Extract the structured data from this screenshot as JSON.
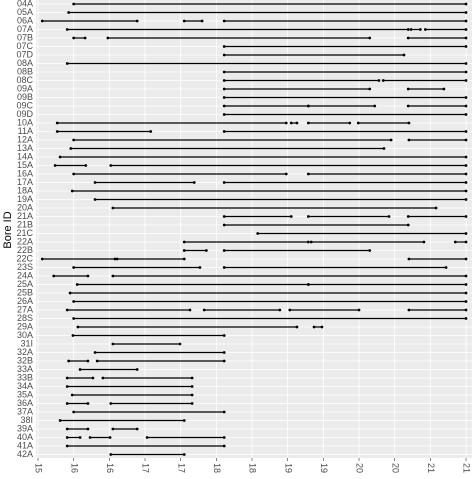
{
  "chart_data": {
    "type": "range",
    "y_label": "Bore ID",
    "color": "#000000",
    "grid": true,
    "xlim": [
      15,
      21
    ],
    "xticks": [
      15,
      {
        "value": 15.5,
        "label": "16"
      },
      16,
      {
        "value": 16.5,
        "label": "17"
      },
      17,
      {
        "value": 17.5,
        "label": "18"
      },
      18,
      {
        "value": 18.5,
        "label": "19"
      },
      19,
      {
        "value": 19.5,
        "label": "20"
      },
      20,
      {
        "value": 20.5,
        "label": "21"
      },
      21
    ],
    "categories": [
      "04A",
      "05A",
      "06A",
      "07A",
      "07B",
      "07C",
      "07D",
      "08A",
      "08B",
      "08C",
      "09A",
      "09B",
      "09C",
      "09D",
      "10A",
      "11A",
      "12A",
      "13A",
      "14A",
      "15A",
      "16A",
      "17A",
      "18A",
      "19A",
      "20A",
      "21A",
      "21B",
      "21C",
      "22A",
      "22B",
      "22C",
      "23S",
      "24A",
      "25A",
      "25B",
      "26A",
      "27A",
      "28S",
      "29A",
      "30A",
      "31I",
      "32A",
      "32B",
      "33A",
      "33B",
      "34A",
      "35A",
      "36A",
      "37A",
      "38I",
      "39A",
      "40A",
      "41A",
      "42A"
    ],
    "ranges": [
      [
        [
          15.5,
          21
        ]
      ],
      [
        [
          15.43,
          21
        ]
      ],
      [
        [
          15.06,
          16.39
        ],
        [
          17.05,
          17.3
        ],
        [
          17.61,
          21
        ]
      ],
      [
        [
          15.41,
          20.19
        ],
        [
          20.23,
          20.36
        ],
        [
          20.43,
          21
        ]
      ],
      [
        [
          15.5,
          15.66
        ],
        [
          15.98,
          19.65
        ],
        [
          20.19,
          21
        ]
      ],
      [
        [
          17.61,
          21
        ]
      ],
      [
        [
          17.61,
          20.13
        ]
      ],
      [
        [
          15.41,
          21
        ]
      ],
      [
        [
          17.61,
          21
        ]
      ],
      [
        [
          17.61,
          19.78
        ],
        [
          19.84,
          21
        ]
      ],
      [
        [
          17.61,
          19.65
        ],
        [
          20.19,
          20.69
        ]
      ],
      [
        [
          17.61,
          21
        ]
      ],
      [
        [
          17.61,
          18.79
        ],
        [
          18.79,
          19.72
        ],
        [
          20.19,
          21
        ]
      ],
      [
        [
          17.61,
          21
        ]
      ],
      [
        [
          15.27,
          18.48
        ],
        [
          18.55,
          18.63
        ],
        [
          18.79,
          19.37
        ],
        [
          19.49,
          20.2
        ]
      ],
      [
        [
          15.27,
          16.58
        ],
        [
          17.61,
          21
        ]
      ],
      [
        [
          15.5,
          19.95
        ],
        [
          20.2,
          21
        ]
      ],
      [
        [
          15.46,
          19.85
        ]
      ],
      [
        [
          15.31,
          21
        ]
      ],
      [
        [
          15.24,
          15.67
        ],
        [
          16.02,
          21
        ]
      ],
      [
        [
          15.5,
          18.48
        ],
        [
          18.79,
          21
        ]
      ],
      [
        [
          15.8,
          17.19
        ],
        [
          17.61,
          21
        ]
      ],
      [
        [
          15.48,
          21
        ]
      ],
      [
        [
          15.8,
          21
        ]
      ],
      [
        [
          16.05,
          20.58
        ]
      ],
      [
        [
          17.61,
          18.55
        ],
        [
          18.79,
          19.92
        ],
        [
          20.19,
          21
        ]
      ],
      [
        [
          17.61,
          20.19
        ]
      ],
      [
        [
          18.08,
          21
        ]
      ],
      [
        [
          17.05,
          18.79
        ],
        [
          18.83,
          20.41
        ],
        [
          20.85,
          21
        ]
      ],
      [
        [
          17.05,
          17.36
        ],
        [
          17.61,
          19.65
        ]
      ],
      [
        [
          15.06,
          16.08
        ],
        [
          16.11,
          17.05
        ],
        [
          20.2,
          21
        ]
      ],
      [
        [
          15.5,
          17.27
        ],
        [
          17.61,
          20.72
        ]
      ],
      [
        [
          15.22,
          15.7
        ],
        [
          16.05,
          21
        ]
      ],
      [
        [
          15.55,
          18.79
        ],
        [
          18.79,
          21
        ]
      ],
      [
        [
          15.45,
          21
        ]
      ],
      [
        [
          15.5,
          21
        ]
      ],
      [
        [
          15.41,
          17.13
        ],
        [
          17.33,
          18.39
        ],
        [
          18.53,
          19.5
        ],
        [
          20.2,
          21
        ]
      ],
      [
        [
          15.5,
          21
        ]
      ],
      [
        [
          15.56,
          18.63
        ],
        [
          18.87,
          18.98
        ]
      ],
      [
        [
          15.49,
          17.61
        ]
      ],
      [
        [
          16.05,
          16.99
        ]
      ],
      [
        [
          15.8,
          17.61
        ]
      ],
      [
        [
          15.43,
          15.7
        ],
        [
          15.83,
          17.61
        ]
      ],
      [
        [
          15.59,
          16.39
        ]
      ],
      [
        [
          15.41,
          15.77
        ],
        [
          15.91,
          17.16
        ]
      ],
      [
        [
          15.41,
          17.16
        ]
      ],
      [
        [
          15.48,
          17.16
        ]
      ],
      [
        [
          15.41,
          15.7
        ],
        [
          16.02,
          17.16
        ]
      ],
      [
        [
          15.5,
          17.61
        ]
      ],
      [
        [
          15.31,
          17.05
        ]
      ],
      [
        [
          15.41,
          15.7
        ],
        [
          16.05,
          16.39
        ]
      ],
      [
        [
          15.41,
          15.59
        ],
        [
          15.73,
          16.01
        ],
        [
          16.53,
          17.61
        ]
      ],
      [
        [
          15.41,
          17.61
        ]
      ],
      [
        [
          16.02,
          17.05
        ]
      ]
    ]
  }
}
